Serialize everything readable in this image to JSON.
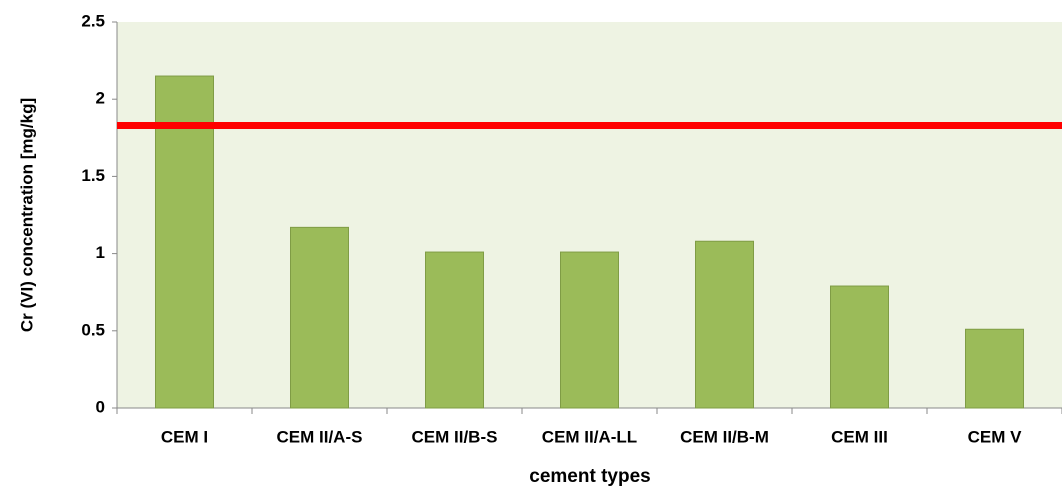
{
  "chart_data": {
    "type": "bar",
    "x_label": "cement types",
    "y_label": "Cr (VI) concentration [mg/kg]",
    "categories": [
      "CEM I",
      "CEM II/A-S",
      "CEM II/B-S",
      "CEM II/A-LL",
      "CEM II/B-M",
      "CEM III",
      "CEM V"
    ],
    "values": [
      2.15,
      1.17,
      1.01,
      1.01,
      1.08,
      0.79,
      0.51
    ],
    "color": "#9bbb59",
    "ylim": [
      0,
      2.5
    ],
    "yticks": [
      0,
      0.5,
      1,
      1.5,
      2,
      2.5
    ],
    "reference_line": {
      "value": 1.83,
      "color": "#ff0000"
    },
    "background": "#eef3e3"
  }
}
